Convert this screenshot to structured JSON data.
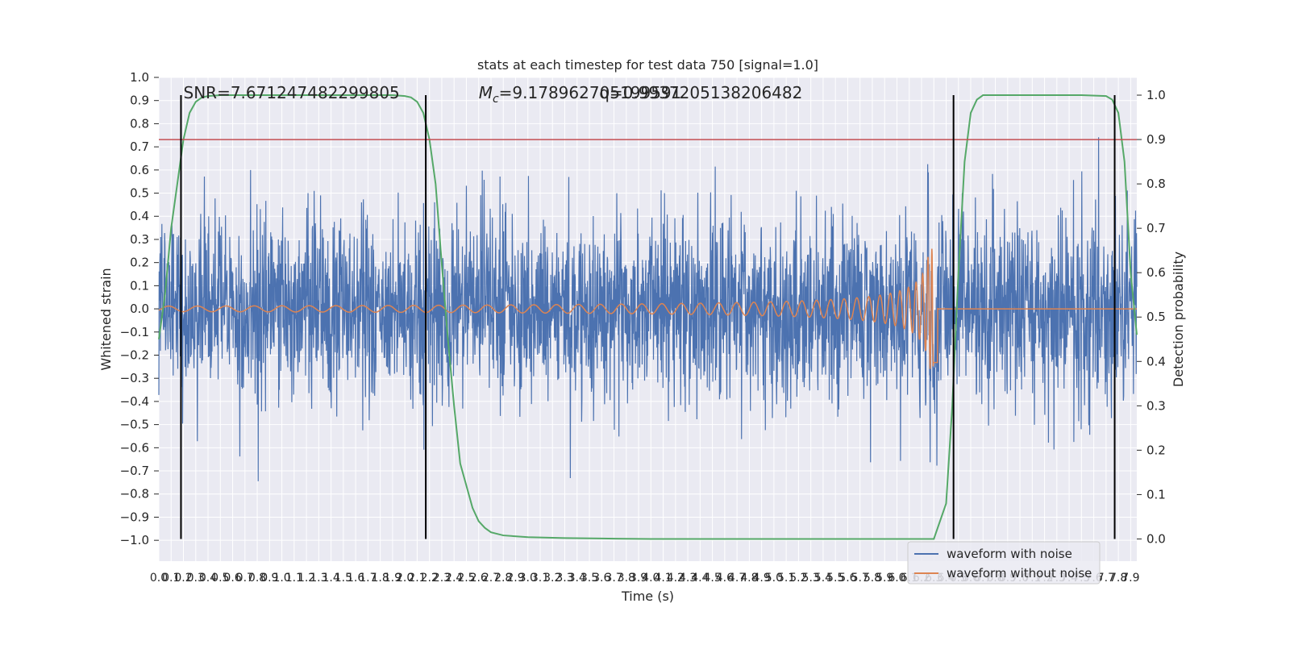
{
  "chart_data": {
    "type": "line",
    "title": "stats at each timestep for test data 750 [signal=1.0]",
    "xlabel": "Time (s)",
    "ylabel": "Whitened strain",
    "y2label": "Detection probability",
    "xlim": [
      0.0,
      7.95
    ],
    "ylim": [
      -1.09,
      1.0
    ],
    "y2lim": [
      -0.05,
      1.04
    ],
    "grid": true,
    "legend_placement": "lower-right",
    "xticks": [
      0.0,
      0.1,
      0.2,
      0.3,
      0.4,
      0.5,
      0.6,
      0.7,
      0.8,
      0.9,
      1.0,
      1.1,
      1.2,
      1.3,
      1.4,
      1.5,
      1.6,
      1.7,
      1.8,
      1.9,
      2.0,
      2.1,
      2.2,
      2.3,
      2.4,
      2.5,
      2.6,
      2.7,
      2.8,
      2.9,
      3.0,
      3.1,
      3.2,
      3.3,
      3.4,
      3.5,
      3.6,
      3.7,
      3.8,
      3.9,
      4.0,
      4.1,
      4.2,
      4.3,
      4.4,
      4.5,
      4.6,
      4.7,
      4.8,
      4.9,
      5.0,
      5.1,
      5.2,
      5.3,
      5.4,
      5.5,
      5.6,
      5.7,
      5.8,
      5.9,
      6.0,
      6.1,
      6.2,
      6.3,
      6.4,
      6.5,
      6.6,
      6.7,
      6.8,
      6.9,
      7.0,
      7.1,
      7.2,
      7.3,
      7.4,
      7.5,
      7.6,
      7.7,
      7.8,
      7.9
    ],
    "yticks": [
      -1.0,
      -0.9,
      -0.8,
      -0.7,
      -0.6,
      -0.5,
      -0.4,
      -0.3,
      -0.2,
      -0.1,
      0.0,
      0.1,
      0.2,
      0.3,
      0.4,
      0.5,
      0.6,
      0.7,
      0.8,
      0.9,
      1.0
    ],
    "y2ticks": [
      0.0,
      0.1,
      0.2,
      0.3,
      0.4,
      0.5,
      0.6,
      0.7,
      0.8,
      0.9,
      1.0
    ],
    "annotations": [
      {
        "text": "SNR=7.671247482299805",
        "x": 0.2
      },
      {
        "text": "Mc=9.178962705199591",
        "x": 2.6
      },
      {
        "text": "q=0.9937205138206482",
        "x": 3.58
      }
    ],
    "threshold": {
      "y2": 0.9,
      "color": "#c44e52"
    },
    "vlines": [
      0.18,
      2.17,
      6.46,
      7.77
    ],
    "series": [
      {
        "name": "waveform with noise",
        "color": "#4c72b0",
        "noise_sigma": 0.2,
        "peak_abs": 1.0
      },
      {
        "name": "waveform without noise",
        "color": "#dd8452",
        "chirp_merger_time": 6.3,
        "peak": 0.22,
        "trough": -0.3
      },
      {
        "name": "",
        "color": "#55a868",
        "axis": "right",
        "x": [
          0.0,
          0.05,
          0.1,
          0.15,
          0.2,
          0.25,
          0.3,
          0.35,
          0.4,
          0.45,
          0.5,
          0.6,
          0.8,
          1.0,
          1.5,
          1.9,
          2.0,
          2.05,
          2.1,
          2.15,
          2.2,
          2.25,
          2.3,
          2.35,
          2.4,
          2.45,
          2.5,
          2.55,
          2.6,
          2.65,
          2.7,
          2.8,
          3.0,
          3.3,
          3.6,
          4.0,
          5.0,
          6.0,
          6.3,
          6.4,
          6.45,
          6.5,
          6.55,
          6.6,
          6.65,
          6.7,
          6.8,
          7.0,
          7.5,
          7.7,
          7.75,
          7.8,
          7.85,
          7.9,
          7.95
        ],
        "y": [
          0.45,
          0.55,
          0.7,
          0.8,
          0.9,
          0.96,
          0.985,
          0.995,
          0.998,
          0.999,
          1.0,
          1.0,
          1.0,
          1.0,
          1.0,
          1.0,
          0.998,
          0.995,
          0.985,
          0.96,
          0.9,
          0.8,
          0.62,
          0.45,
          0.3,
          0.17,
          0.12,
          0.07,
          0.04,
          0.025,
          0.015,
          0.008,
          0.004,
          0.002,
          0.001,
          0.0,
          0.0,
          0.0,
          0.0,
          0.08,
          0.3,
          0.6,
          0.85,
          0.96,
          0.99,
          1.0,
          1.0,
          1.0,
          1.0,
          0.998,
          0.99,
          0.96,
          0.85,
          0.6,
          0.46
        ]
      }
    ]
  },
  "legend": [
    {
      "label": "waveform with noise",
      "color": "#4c72b0"
    },
    {
      "label": "waveform without noise",
      "color": "#dd8452"
    }
  ]
}
